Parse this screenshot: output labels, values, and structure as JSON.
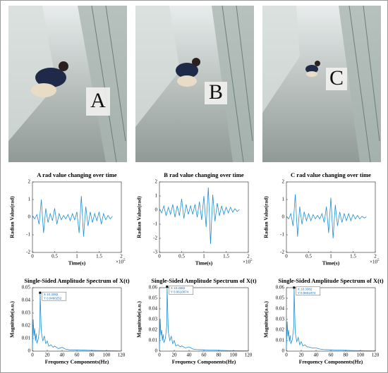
{
  "photos": [
    {
      "label": "A"
    },
    {
      "label": "B"
    },
    {
      "label": "C"
    }
  ],
  "chart_data": [
    {
      "type": "line",
      "title": "A rad value changing over time",
      "xlabel": "Time(s)",
      "ylabel": "Radian Value(rad)",
      "color": "#1f8fd1",
      "x_offset_text": "×10",
      "x_offset_exp": "5",
      "x": [
        0,
        0.05,
        0.1,
        0.15,
        0.2,
        0.25,
        0.3,
        0.35,
        0.4,
        0.45,
        0.5,
        0.55,
        0.6,
        0.65,
        0.7,
        0.75,
        0.8,
        0.85,
        0.9,
        0.95,
        1,
        1.05,
        1.1,
        1.15,
        1.2,
        1.25,
        1.3,
        1.35,
        1.4,
        1.45,
        1.5,
        1.55,
        1.6,
        1.65,
        1.7,
        1.75,
        1.8
      ],
      "values": [
        0.1,
        -0.1,
        0.15,
        -0.4,
        1.0,
        -0.9,
        0.5,
        -0.3,
        0.2,
        -0.2,
        0.5,
        -0.4,
        0.2,
        -0.15,
        0.1,
        -0.1,
        0.15,
        -0.2,
        0.2,
        -0.15,
        0.3,
        -0.9,
        1.2,
        -1.1,
        0.6,
        -0.5,
        0.3,
        -0.3,
        0.2,
        -0.2,
        0.3,
        -0.4,
        0.2,
        -0.15,
        0.1,
        -0.1,
        0.05
      ],
      "xlim": [
        0,
        2
      ],
      "xticks": [
        0,
        0.5,
        1,
        1.5,
        2
      ],
      "ylim": [
        -2,
        2
      ],
      "yticks": [
        -2,
        -1,
        0,
        1,
        2
      ]
    },
    {
      "type": "line",
      "title": "B rad value changing over time",
      "xlabel": "Time(s)",
      "ylabel": "Radian Value(rad)",
      "color": "#1f8fd1",
      "x_offset_text": "×10",
      "x_offset_exp": "5",
      "x": [
        0,
        0.05,
        0.1,
        0.15,
        0.2,
        0.25,
        0.3,
        0.35,
        0.4,
        0.45,
        0.5,
        0.55,
        0.6,
        0.65,
        0.7,
        0.75,
        0.8,
        0.85,
        0.9,
        0.95,
        1,
        1.05,
        1.1,
        1.15,
        1.2,
        1.25,
        1.3,
        1.35,
        1.4,
        1.45,
        1.5,
        1.55,
        1.6,
        1.65,
        1.7,
        1.75,
        1.8
      ],
      "values": [
        0.1,
        -0.2,
        0.3,
        -0.4,
        0.2,
        -0.3,
        0.4,
        -0.5,
        0.3,
        -0.4,
        0.8,
        -0.6,
        0.4,
        -0.3,
        0.3,
        -0.3,
        0.4,
        -0.5,
        0.6,
        -0.7,
        1.0,
        -1.2,
        1.6,
        -2.4,
        1.1,
        -0.8,
        0.5,
        -0.4,
        0.3,
        -0.3,
        0.2,
        -0.2,
        0.2,
        -0.15,
        0.1,
        -0.1,
        0.05
      ],
      "xlim": [
        0,
        2
      ],
      "xticks": [
        0,
        0.5,
        1,
        1.5,
        2
      ],
      "ylim": [
        -3,
        2
      ],
      "yticks": [
        -3,
        -2,
        -1,
        0,
        1,
        2
      ]
    },
    {
      "type": "line",
      "title": "C rad value changing over time",
      "xlabel": "Time(s)",
      "ylabel": "Radian Value(rad)",
      "color": "#1f8fd1",
      "x_offset_text": "×10",
      "x_offset_exp": "5",
      "x": [
        0,
        0.05,
        0.1,
        0.15,
        0.2,
        0.25,
        0.3,
        0.35,
        0.4,
        0.45,
        0.5,
        0.55,
        0.6,
        0.65,
        0.7,
        0.75,
        0.8,
        0.85,
        0.9,
        0.95,
        1,
        1.05,
        1.1,
        1.15,
        1.2,
        1.25,
        1.3,
        1.35,
        1.4,
        1.45,
        1.5,
        1.55,
        1.6,
        1.65,
        1.7,
        1.75,
        1.8
      ],
      "values": [
        0.05,
        -0.1,
        0.2,
        -0.5,
        1.3,
        -1.1,
        0.6,
        -0.4,
        0.3,
        -0.2,
        0.2,
        -0.2,
        0.15,
        -0.1,
        0.1,
        -0.1,
        0.2,
        -0.3,
        0.6,
        -0.9,
        1.1,
        -1.2,
        0.7,
        -0.5,
        0.3,
        -0.3,
        0.2,
        -0.2,
        0.2,
        -0.2,
        0.15,
        -0.1,
        0.1,
        -0.1,
        0.05,
        -0.05,
        0.02
      ],
      "xlim": [
        0,
        2
      ],
      "xticks": [
        0,
        0.5,
        1,
        1.5,
        2
      ],
      "ylim": [
        -2,
        2
      ],
      "yticks": [
        -2,
        -1,
        0,
        1,
        2
      ]
    },
    {
      "type": "line",
      "title": "Single-Sided Amplitude Spectrum of X(t)",
      "xlabel": "Frequency Components(Hz)",
      "ylabel": "Magnitude(a.u.)",
      "color": "#1f8fd1",
      "datatip": [
        "X 10.3382",
        "Y 0.0460252"
      ],
      "x": [
        0,
        1,
        2,
        3,
        4,
        5,
        6,
        8,
        10,
        10.3382,
        12,
        14,
        16,
        18,
        20,
        22,
        25,
        28,
        30,
        35,
        40,
        45,
        50,
        60,
        70,
        80,
        90,
        100,
        110,
        120
      ],
      "values": [
        0.002,
        0.025,
        0.012,
        0.018,
        0.008,
        0.014,
        0.006,
        0.01,
        0.02,
        0.0460252,
        0.015,
        0.008,
        0.012,
        0.006,
        0.008,
        0.004,
        0.005,
        0.003,
        0.004,
        0.002,
        0.003,
        0.0015,
        0.001,
        0.001,
        0.0008,
        0.0006,
        0.0005,
        0.0004,
        0.0003,
        0.0002
      ],
      "xlim": [
        0,
        120
      ],
      "xticks": [
        0,
        20,
        40,
        60,
        80,
        100,
        120
      ],
      "ylim": [
        0,
        0.05
      ],
      "yticks": [
        0,
        0.01,
        0.02,
        0.03,
        0.04,
        0.05
      ]
    },
    {
      "type": "line",
      "title": "Single-Sided Amplitude Spectrum of X(t)",
      "xlabel": "Frequency Components(Hz)",
      "ylabel": "Magnitude(a.u.)",
      "color": "#1f8fd1",
      "datatip": [
        "X 10.3382",
        "Y 0.0610074"
      ],
      "x": [
        0,
        1,
        2,
        3,
        4,
        5,
        6,
        8,
        10,
        10.3382,
        12,
        14,
        16,
        18,
        20,
        22,
        25,
        28,
        30,
        35,
        40,
        45,
        50,
        60,
        70,
        80,
        90,
        100,
        110,
        120
      ],
      "values": [
        0.002,
        0.03,
        0.015,
        0.02,
        0.01,
        0.016,
        0.008,
        0.012,
        0.025,
        0.0610074,
        0.018,
        0.01,
        0.014,
        0.007,
        0.01,
        0.005,
        0.006,
        0.004,
        0.005,
        0.003,
        0.004,
        0.002,
        0.0015,
        0.0012,
        0.001,
        0.0008,
        0.0006,
        0.0005,
        0.0004,
        0.0003
      ],
      "xlim": [
        0,
        120
      ],
      "xticks": [
        0,
        20,
        40,
        60,
        80,
        100,
        120
      ],
      "ylim": [
        0,
        0.06
      ],
      "yticks": [
        0,
        0.01,
        0.02,
        0.03,
        0.04,
        0.05,
        0.06
      ]
    },
    {
      "type": "line",
      "title": "Single-Sided Amplitude Spectrum of X(t)",
      "xlabel": "Frequency Components(Hz)",
      "ylabel": "Magnitude(a.u.)",
      "color": "#1f8fd1",
      "datatip": [
        "X 10.3382",
        "Y 0.0601074"
      ],
      "x": [
        0,
        1,
        2,
        3,
        4,
        5,
        6,
        8,
        10,
        10.3382,
        12,
        14,
        16,
        18,
        20,
        22,
        25,
        28,
        30,
        35,
        40,
        45,
        50,
        60,
        70,
        80,
        90,
        100,
        110,
        120
      ],
      "values": [
        0.002,
        0.028,
        0.014,
        0.02,
        0.009,
        0.015,
        0.007,
        0.011,
        0.024,
        0.0601074,
        0.017,
        0.009,
        0.013,
        0.006,
        0.009,
        0.005,
        0.006,
        0.004,
        0.004,
        0.003,
        0.003,
        0.002,
        0.0015,
        0.0012,
        0.001,
        0.0008,
        0.0006,
        0.0005,
        0.0004,
        0.0003
      ],
      "xlim": [
        0,
        120
      ],
      "xticks": [
        0,
        20,
        40,
        60,
        80,
        100,
        120
      ],
      "ylim": [
        0,
        0.06
      ],
      "yticks": [
        0,
        0.01,
        0.02,
        0.03,
        0.04,
        0.05,
        0.06
      ]
    }
  ]
}
